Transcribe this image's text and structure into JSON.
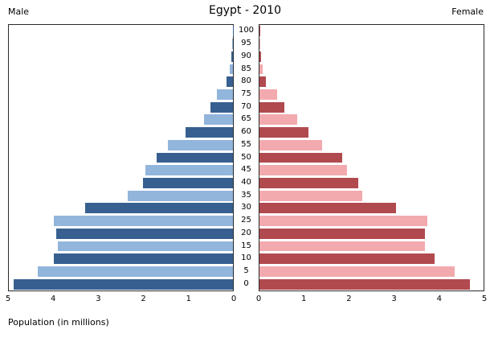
{
  "header": {
    "male_label": "Male",
    "title": "Egypt - 2010",
    "female_label": "Female"
  },
  "x_axis_label": "Population (in millions)",
  "chart_data": {
    "type": "bar",
    "subtype": "population-pyramid",
    "title": "Egypt - 2010",
    "xlabel": "Population (in millions)",
    "unit": "millions",
    "ages": [
      0,
      5,
      10,
      15,
      20,
      25,
      30,
      35,
      40,
      45,
      50,
      55,
      60,
      65,
      70,
      75,
      80,
      85,
      90,
      95,
      100
    ],
    "series": [
      {
        "name": "Male",
        "values": [
          4.9,
          4.35,
          4.0,
          3.9,
          3.95,
          4.0,
          3.3,
          2.35,
          2.0,
          1.95,
          1.7,
          1.45,
          1.05,
          0.65,
          0.5,
          0.35,
          0.15,
          0.07,
          0.03,
          0.01,
          0.004
        ],
        "color_dark": "#376091",
        "color_light": "#92b5dc"
      },
      {
        "name": "Female",
        "values": [
          4.7,
          4.35,
          3.9,
          3.7,
          3.7,
          3.75,
          3.05,
          2.3,
          2.2,
          1.95,
          1.85,
          1.4,
          1.1,
          0.85,
          0.55,
          0.4,
          0.15,
          0.08,
          0.03,
          0.01,
          0.004
        ],
        "color_dark": "#b04a4f",
        "color_light": "#f3aaae"
      }
    ],
    "xlim": [
      0,
      5
    ],
    "male_axis_ticks": [
      "5",
      "4",
      "3",
      "2",
      "1",
      "0"
    ],
    "female_axis_ticks": [
      "0",
      "1",
      "2",
      "3",
      "4",
      "5"
    ],
    "legend": "none",
    "grid": false
  }
}
